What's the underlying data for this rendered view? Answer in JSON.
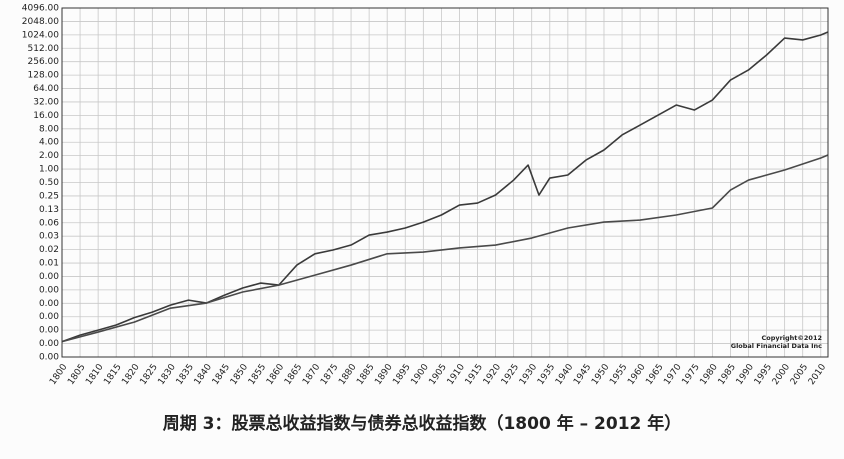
{
  "chart_data": {
    "type": "line",
    "title": "周期 3：股票总收益指数与债券总收益指数（1800 年 – 2012 年）",
    "annotations": [
      "Copyright©2012",
      "Global Financial Data Inc"
    ],
    "log_scale": true,
    "grid": true,
    "xlim": [
      1800,
      2012
    ],
    "xticks": [
      1800,
      1805,
      1810,
      1815,
      1820,
      1825,
      1830,
      1835,
      1840,
      1845,
      1850,
      1855,
      1860,
      1865,
      1870,
      1875,
      1880,
      1885,
      1890,
      1895,
      1900,
      1905,
      1910,
      1915,
      1920,
      1925,
      1930,
      1935,
      1940,
      1945,
      1950,
      1955,
      1960,
      1965,
      1970,
      1975,
      1980,
      1985,
      1990,
      1995,
      2000,
      2005,
      2010
    ],
    "ylim": [
      6.103515625e-05,
      4096
    ],
    "yticks": [
      {
        "value": 4096,
        "label": "4096.00"
      },
      {
        "value": 2048,
        "label": "2048.00"
      },
      {
        "value": 1024,
        "label": "1024.00"
      },
      {
        "value": 512,
        "label": "512.00"
      },
      {
        "value": 256,
        "label": "256.00"
      },
      {
        "value": 128,
        "label": "128.00"
      },
      {
        "value": 64,
        "label": "64.00"
      },
      {
        "value": 32,
        "label": "32.00"
      },
      {
        "value": 16,
        "label": "16.00"
      },
      {
        "value": 8,
        "label": "8.00"
      },
      {
        "value": 4,
        "label": "4.00"
      },
      {
        "value": 2,
        "label": "2.00"
      },
      {
        "value": 1,
        "label": "1.00"
      },
      {
        "value": 0.5,
        "label": "0.50"
      },
      {
        "value": 0.25,
        "label": "0.25"
      },
      {
        "value": 0.125,
        "label": "0.13"
      },
      {
        "value": 0.0625,
        "label": "0.06"
      },
      {
        "value": 0.03125,
        "label": "0.03"
      },
      {
        "value": 0.015625,
        "label": "0.02"
      },
      {
        "value": 0.0078125,
        "label": "0.01"
      },
      {
        "value": 0.00390625,
        "label": "0.00"
      },
      {
        "value": 0.001953125,
        "label": "0.00"
      },
      {
        "value": 0.0009765625,
        "label": "0.00"
      },
      {
        "value": 0.00048828125,
        "label": "0.00"
      },
      {
        "value": 0.000244140625,
        "label": "0.00"
      },
      {
        "value": 0.0001220703125,
        "label": "0.00"
      },
      {
        "value": 6.103515625e-05,
        "label": "0.00"
      }
    ],
    "series": [
      {
        "color": "#3a3a3a",
        "x": [
          1800,
          1805,
          1810,
          1815,
          1820,
          1825,
          1830,
          1835,
          1840,
          1845,
          1850,
          1855,
          1860,
          1865,
          1870,
          1875,
          1880,
          1885,
          1890,
          1895,
          1900,
          1905,
          1910,
          1915,
          1920,
          1925,
          1929,
          1932,
          1935,
          1940,
          1945,
          1950,
          1955,
          1960,
          1965,
          1970,
          1975,
          1980,
          1985,
          1990,
          1995,
          2000,
          2005,
          2010,
          2012
        ],
        "values": [
          0.000135,
          0.000189,
          0.000245,
          0.000318,
          0.000466,
          0.00062,
          0.00089,
          0.00115,
          0.00099,
          0.00149,
          0.00215,
          0.00278,
          0.0025,
          0.00704,
          0.0126,
          0.0153,
          0.0198,
          0.0331,
          0.0387,
          0.0477,
          0.0647,
          0.0934,
          0.156,
          0.173,
          0.262,
          0.567,
          1.23,
          0.262,
          0.628,
          0.737,
          1.59,
          2.68,
          5.82,
          9.71,
          16.3,
          27.3,
          21.1,
          35.3,
          99,
          167,
          362,
          867,
          787,
          1017,
          1184
        ]
      },
      {
        "color": "#4a4a4a",
        "x": [
          1800,
          1810,
          1820,
          1830,
          1840,
          1850,
          1860,
          1870,
          1880,
          1890,
          1900,
          1910,
          1920,
          1930,
          1940,
          1950,
          1960,
          1970,
          1980,
          1985,
          1990,
          2000,
          2010,
          2012
        ],
        "values": [
          0.000135,
          0.000221,
          0.00037,
          0.00076,
          0.00099,
          0.00175,
          0.0025,
          0.00419,
          0.00704,
          0.0126,
          0.0138,
          0.017,
          0.0198,
          0.0284,
          0.0477,
          0.0647,
          0.0718,
          0.0934,
          0.134,
          0.339,
          0.567,
          0.953,
          1.77,
          2.07
        ]
      }
    ]
  }
}
